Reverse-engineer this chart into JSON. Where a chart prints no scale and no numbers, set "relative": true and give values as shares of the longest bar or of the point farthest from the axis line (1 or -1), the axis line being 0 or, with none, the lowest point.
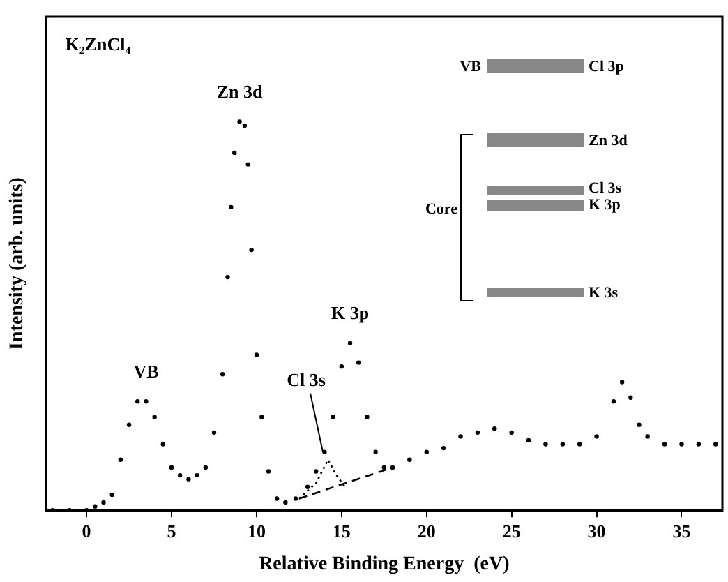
{
  "chart_data": {
    "type": "scatter",
    "title": "K₂ZnCl₄",
    "xlabel": "Relative Binding Energy  (eV)",
    "ylabel": "Intensity (arb. units)",
    "relative": true,
    "xlim": [
      -2.4,
      37.4
    ],
    "xticks": [
      0,
      5,
      10,
      15,
      20,
      25,
      30,
      35
    ],
    "grid": false,
    "legend": false,
    "series": [
      {
        "color": "#000000",
        "marker": "circle",
        "x": [
          -2,
          -1,
          0,
          0.5,
          1,
          1.5,
          2,
          2.5,
          3,
          3.5,
          4,
          4.5,
          5,
          5.5,
          6,
          6.5,
          7,
          7.5,
          8,
          8.3,
          8.5,
          8.7,
          9,
          9.3,
          9.5,
          9.7,
          10,
          10.3,
          10.7,
          11.2,
          11.7,
          12.3,
          13,
          13.5,
          14,
          14.5,
          15,
          15.5,
          16,
          16.5,
          17,
          17.5,
          18,
          19,
          20,
          21,
          22,
          23,
          24,
          25,
          26,
          27,
          28,
          29,
          30,
          31,
          31.5,
          32,
          32.5,
          33,
          34,
          35,
          36,
          37
        ],
        "values": [
          0,
          0,
          0,
          0.01,
          0.02,
          0.04,
          0.13,
          0.22,
          0.28,
          0.28,
          0.24,
          0.17,
          0.11,
          0.09,
          0.08,
          0.09,
          0.11,
          0.2,
          0.35,
          0.6,
          0.78,
          0.92,
          1,
          0.99,
          0.89,
          0.67,
          0.4,
          0.24,
          0.1,
          0.03,
          0.02,
          0.03,
          0.06,
          0.1,
          0.15,
          0.24,
          0.37,
          0.43,
          0.38,
          0.24,
          0.15,
          0.11,
          0.11,
          0.13,
          0.15,
          0.16,
          0.19,
          0.2,
          0.21,
          0.2,
          0.18,
          0.17,
          0.17,
          0.17,
          0.19,
          0.28,
          0.33,
          0.29,
          0.22,
          0.19,
          0.17,
          0.17,
          0.17,
          0.17
        ]
      },
      {
        "type": "line",
        "color": "#000000",
        "marker": "none",
        "line_style": "dashed",
        "x": [
          12.5,
          18
        ],
        "values": [
          0.03,
          0.11
        ]
      },
      {
        "type": "line",
        "color": "#000000",
        "marker": "none",
        "line_style": "dotted",
        "x": [
          12.5,
          13.5,
          14.2,
          14.7,
          15.2
        ],
        "values": [
          0.03,
          0.07,
          0.13,
          0.09,
          0.06
        ]
      }
    ],
    "annotations": [
      {
        "text": "VB",
        "x": 3.5,
        "y": 0.28
      },
      {
        "text": "Zn 3d",
        "x": 9,
        "y": 1
      },
      {
        "text": "K 3p",
        "x": 15.5,
        "y": 0.43
      },
      {
        "text": "Cl 3s",
        "x": 13.9,
        "y": 0.15
      },
      "VB",
      "Cl 3p",
      "Zn 3d",
      "Cl 3s",
      "K 3p",
      "Core",
      "K 3s"
    ]
  }
}
